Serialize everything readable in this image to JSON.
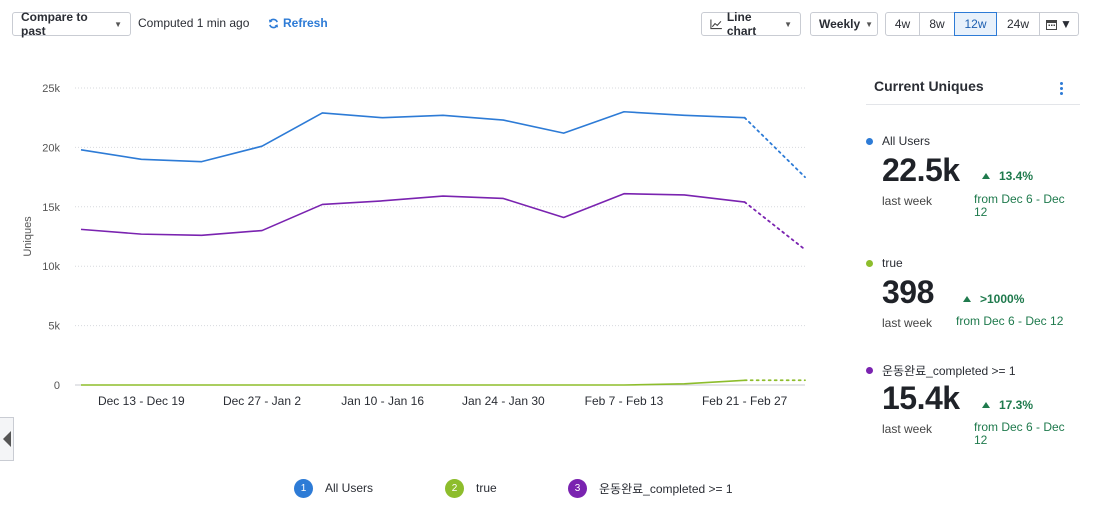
{
  "toolbar": {
    "compare_label": "Compare to past",
    "computed_text": "Computed 1 min ago",
    "refresh_label": "Refresh",
    "chart_type_label": "Line chart",
    "interval_label": "Weekly",
    "ranges": [
      "4w",
      "8w",
      "12w",
      "24w"
    ],
    "active_range": "12w"
  },
  "panel": {
    "title": "Current Uniques",
    "metrics": [
      {
        "name": "All Users",
        "color": "#2d7bd6",
        "value": "22.5k",
        "period": "last week",
        "change": "13.4%",
        "from": "from Dec 6 - Dec 12"
      },
      {
        "name": "true",
        "color": "#8dbd2c",
        "value": "398",
        "period": "last week",
        "change": ">1000%",
        "from": "from Dec 6 - Dec 12"
      },
      {
        "name": "운동완료_completed >= 1",
        "color": "#7a23b0",
        "value": "15.4k",
        "period": "last week",
        "change": "17.3%",
        "from": "from Dec 6 - Dec 12"
      }
    ]
  },
  "legend": [
    {
      "index": "1",
      "name": "All Users",
      "color": "#2d7bd6"
    },
    {
      "index": "2",
      "name": "true",
      "color": "#8dbd2c"
    },
    {
      "index": "3",
      "name": "운동완료_completed >= 1",
      "color": "#7a23b0"
    }
  ],
  "chart_data": {
    "type": "line",
    "title": "",
    "xlabel": "",
    "ylabel": "Uniques",
    "ylim": [
      0,
      25000
    ],
    "yticks": [
      0,
      5000,
      10000,
      15000,
      20000,
      25000
    ],
    "ytick_labels": [
      "0",
      "5k",
      "10k",
      "15k",
      "20k",
      "25k"
    ],
    "x_labels": [
      "Dec 13 - Dec 19",
      "Dec 27 - Jan 2",
      "Jan 10 - Jan 16",
      "Jan 24 - Jan 30",
      "Feb 7 - Feb 13",
      "Feb 21 - Feb 27"
    ],
    "x_label_indices": [
      1,
      3,
      5,
      7,
      9,
      11
    ],
    "points_count": 13,
    "incomplete_from_index": 11,
    "series": [
      {
        "name": "All Users",
        "color": "#2d7bd6",
        "values": [
          19800,
          19000,
          18800,
          20100,
          22900,
          22500,
          22700,
          22300,
          21200,
          23000,
          22700,
          22500,
          17500
        ]
      },
      {
        "name": "true",
        "color": "#8dbd2c",
        "values": [
          0,
          0,
          0,
          0,
          0,
          0,
          0,
          0,
          0,
          0,
          100,
          398,
          400
        ]
      },
      {
        "name": "운동완료_completed >= 1",
        "color": "#7a23b0",
        "values": [
          13100,
          12700,
          12600,
          13000,
          15200,
          15500,
          15900,
          15700,
          14100,
          16100,
          16000,
          15400,
          11400
        ]
      }
    ]
  }
}
